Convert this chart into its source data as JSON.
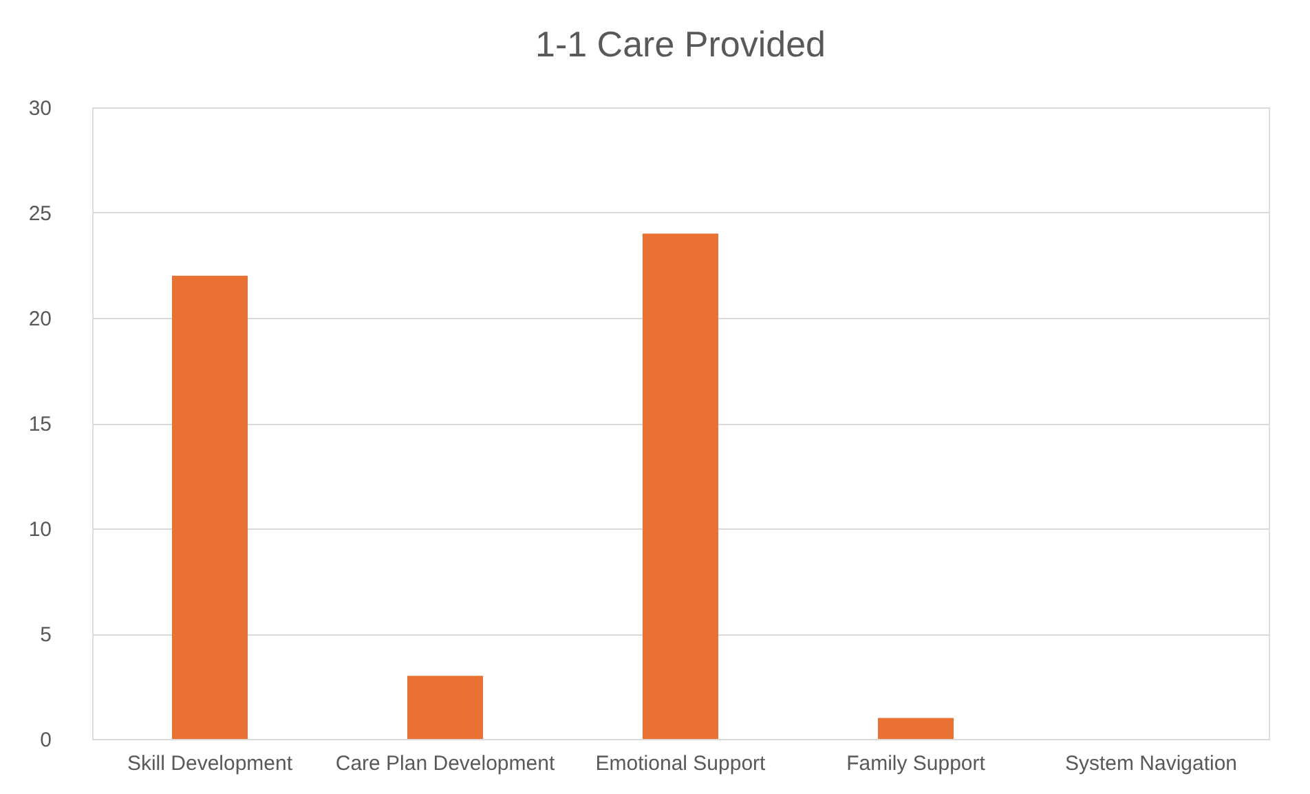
{
  "chart_data": {
    "type": "bar",
    "title": "1-1 Care Provided",
    "categories": [
      "Skill Development",
      "Care Plan Development",
      "Emotional Support",
      "Family Support",
      "System Navigation"
    ],
    "values": [
      22,
      3,
      24,
      1,
      0
    ],
    "color": "#e97132",
    "ylim": [
      0,
      30
    ],
    "yticks": [
      0,
      5,
      10,
      15,
      20,
      25,
      30
    ],
    "grid": "y"
  }
}
